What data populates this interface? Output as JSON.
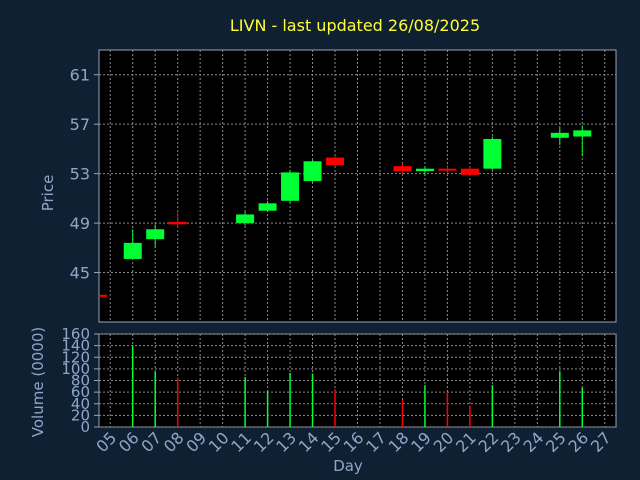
{
  "chart_data": [
    {
      "type": "candlestick",
      "title": "LIVN - last updated 26/08/2025",
      "ylabel": "Price",
      "ylim": [
        41,
        63
      ],
      "yticks": [
        45,
        49,
        53,
        57,
        61
      ],
      "grid": true,
      "up_color": "#00ff33",
      "down_color": "#ff0000",
      "series": [
        {
          "x": "05",
          "open": 43.2,
          "high": 43.2,
          "low": 43.1,
          "close": 43.1
        },
        {
          "x": "06",
          "open": 46.1,
          "high": 48.5,
          "low": 46.1,
          "close": 47.4
        },
        {
          "x": "07",
          "open": 47.7,
          "high": 48.9,
          "low": 47.0,
          "close": 48.5
        },
        {
          "x": "08",
          "open": 49.1,
          "high": 50.0,
          "low": 48.6,
          "close": 48.9
        },
        {
          "x": "11",
          "open": 49.0,
          "high": 49.9,
          "low": 48.8,
          "close": 49.7
        },
        {
          "x": "12",
          "open": 50.0,
          "high": 50.8,
          "low": 49.9,
          "close": 50.6
        },
        {
          "x": "13",
          "open": 50.8,
          "high": 53.3,
          "low": 50.6,
          "close": 53.1
        },
        {
          "x": "14",
          "open": 52.4,
          "high": 54.1,
          "low": 52.3,
          "close": 54.0
        },
        {
          "x": "15",
          "open": 54.3,
          "high": 54.4,
          "low": 53.6,
          "close": 53.7
        },
        {
          "x": "18",
          "open": 53.6,
          "high": 53.8,
          "low": 53.0,
          "close": 53.2
        },
        {
          "x": "19",
          "open": 53.2,
          "high": 53.6,
          "low": 52.8,
          "close": 53.4
        },
        {
          "x": "20",
          "open": 53.4,
          "high": 53.7,
          "low": 53.0,
          "close": 53.3
        },
        {
          "x": "21",
          "open": 53.4,
          "high": 53.6,
          "low": 52.8,
          "close": 52.9
        },
        {
          "x": "22",
          "open": 53.4,
          "high": 56.0,
          "low": 53.3,
          "close": 55.8
        },
        {
          "x": "25",
          "open": 55.9,
          "high": 56.7,
          "low": 55.3,
          "close": 56.3
        },
        {
          "x": "26",
          "open": 56.0,
          "high": 56.9,
          "low": 54.4,
          "close": 56.5
        }
      ]
    },
    {
      "type": "bar",
      "ylabel": "Volume (0000)",
      "xlabel": "Day",
      "ylim": [
        0,
        160
      ],
      "yticks": [
        0,
        20,
        40,
        60,
        80,
        100,
        120,
        140,
        160
      ],
      "categories": [
        "05",
        "06",
        "07",
        "08",
        "09",
        "10",
        "11",
        "12",
        "13",
        "14",
        "15",
        "16",
        "17",
        "18",
        "19",
        "20",
        "21",
        "22",
        "23",
        "24",
        "25",
        "26",
        "27"
      ],
      "values": [
        null,
        140,
        95,
        85,
        null,
        null,
        86,
        62,
        93,
        92,
        65,
        null,
        null,
        46,
        72,
        60,
        37,
        72,
        null,
        null,
        95,
        68,
        null
      ],
      "colors": [
        "",
        "#00ff33",
        "#00ff33",
        "#ff0000",
        "",
        "",
        "#00ff33",
        "#00ff33",
        "#00ff33",
        "#00ff33",
        "#ff0000",
        "",
        "",
        "#ff0000",
        "#00ff33",
        "#ff0000",
        "#ff0000",
        "#00ff33",
        "",
        "",
        "#00ff33",
        "#00ff33",
        ""
      ]
    }
  ]
}
